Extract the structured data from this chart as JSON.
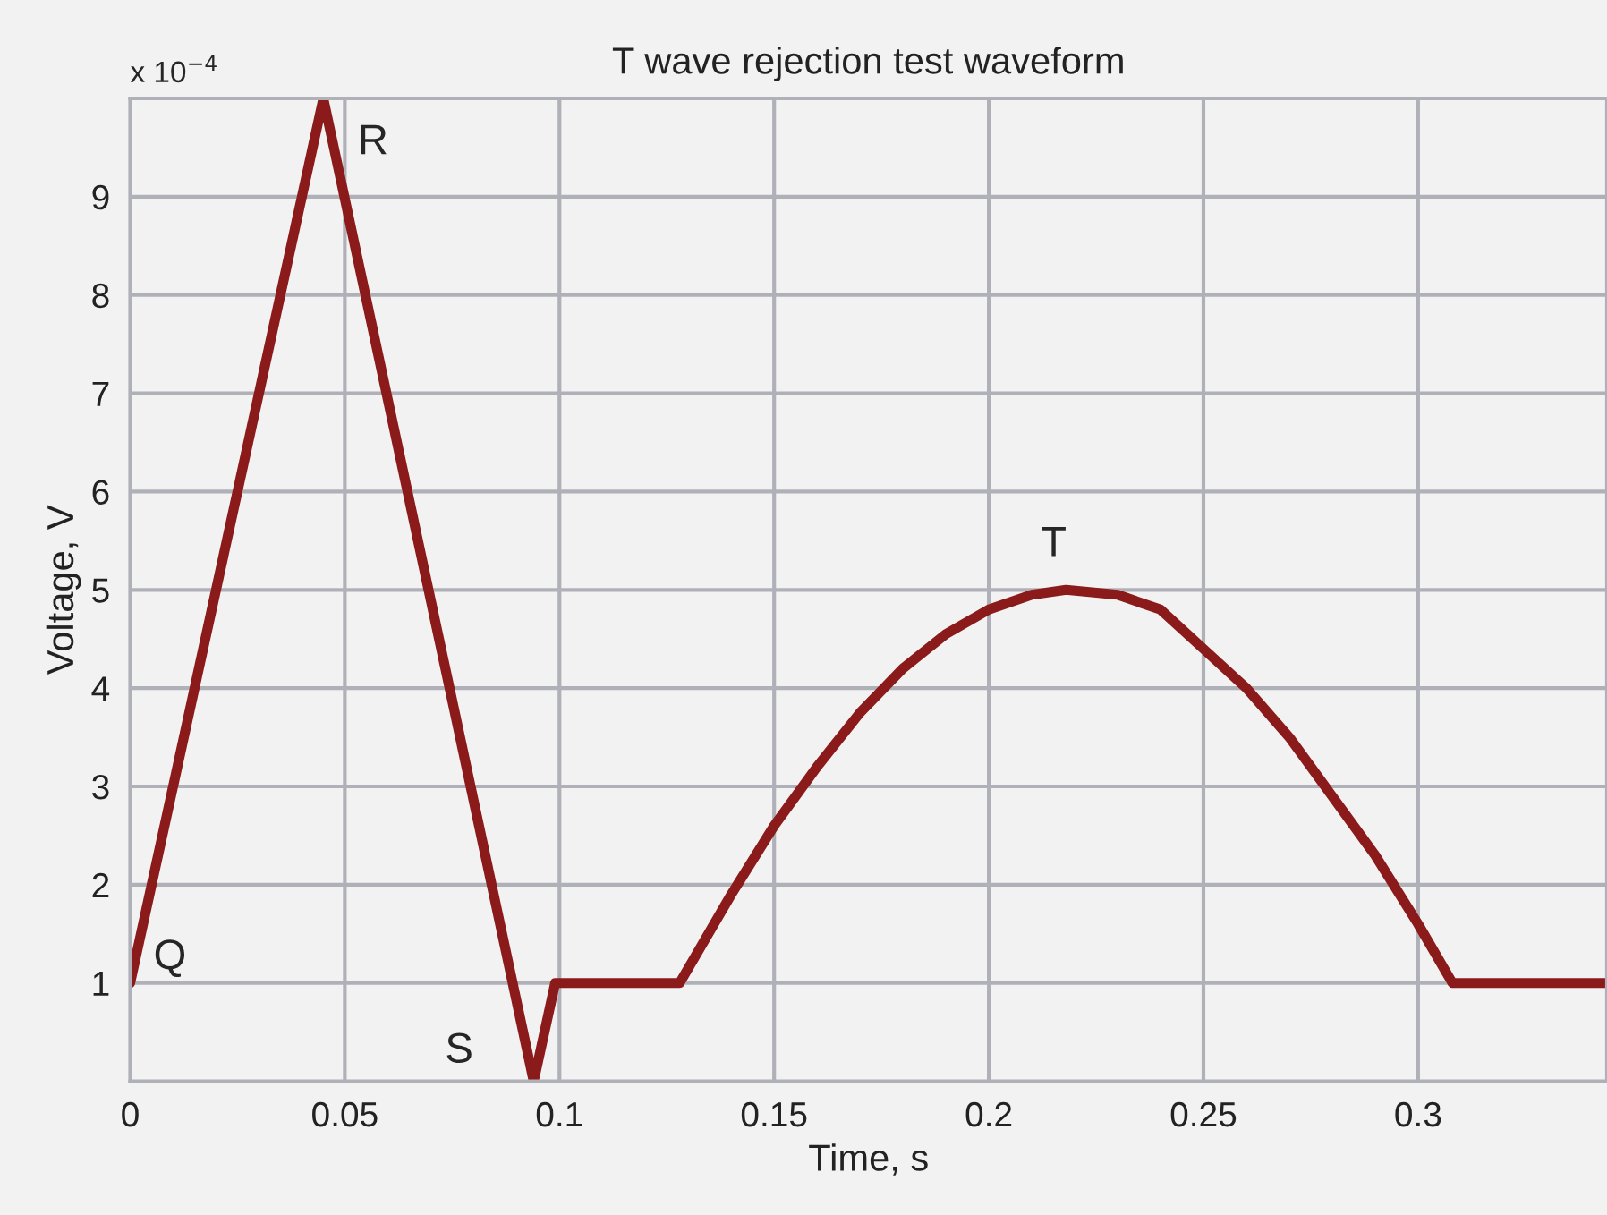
{
  "chart_data": {
    "type": "line",
    "title": "T wave rejection test waveform",
    "xlabel": "Time, s",
    "ylabel": "Voltage, V",
    "x": [
      0,
      0.045,
      0.094,
      0.099,
      0.128,
      0.14,
      0.15,
      0.16,
      0.17,
      0.18,
      0.19,
      0.2,
      0.21,
      0.218,
      0.23,
      0.24,
      0.25,
      0.26,
      0.27,
      0.28,
      0.29,
      0.3,
      0.308,
      0.344
    ],
    "series": [
      {
        "color": "#8b1a1a",
        "values": [
          1,
          10,
          0,
          1,
          1,
          1.9,
          2.6,
          3.2,
          3.75,
          4.2,
          4.55,
          4.8,
          4.95,
          5,
          4.95,
          4.8,
          4.4,
          4.0,
          3.5,
          2.9,
          2.3,
          1.6,
          1,
          1
        ]
      }
    ],
    "xlim": [
      0,
      0.344
    ],
    "xticks": [
      0,
      0.05,
      0.1,
      0.15,
      0.2,
      0.25,
      0.3
    ],
    "ylim": [
      0,
      10
    ],
    "yticks": [
      1,
      2,
      3,
      4,
      5,
      6,
      7,
      8,
      9
    ],
    "annotations": [
      "x 10$^{−4}$",
      {
        "text": "Q",
        "x": 0,
        "y": 1
      },
      {
        "text": "R",
        "x": 0.045,
        "y": 10
      },
      {
        "text": "S",
        "x": 0.094,
        "y": 0
      },
      {
        "text": "T",
        "x": 0.218,
        "y": 5
      }
    ],
    "grid": true,
    "marker": "none",
    "line_style": "solid"
  }
}
